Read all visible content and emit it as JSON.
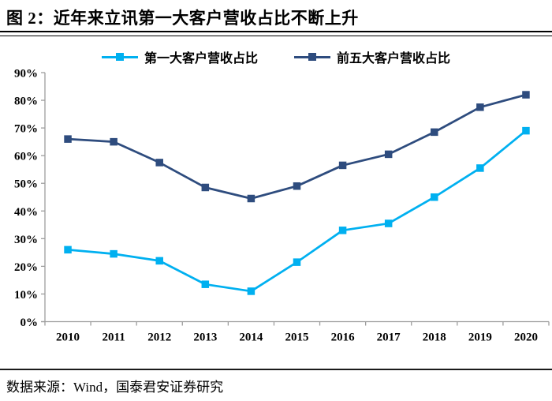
{
  "figure": {
    "title": "图 2：近年来立讯第一大客户营收占比不断上升",
    "source": "数据来源：Wind，国泰君安证券研究"
  },
  "colors": {
    "series_first_customer": "#00B0F0",
    "series_top5_customers": "#2E4C7E",
    "axis": "#9d9d9d",
    "text": "#000000",
    "rule": "#000000"
  },
  "chart_data": {
    "type": "line",
    "title": "图 2：近年来立讯第一大客户营收占比不断上升",
    "categories": [
      "2010",
      "2011",
      "2012",
      "2013",
      "2014",
      "2015",
      "2016",
      "2017",
      "2018",
      "2019",
      "2020"
    ],
    "series": [
      {
        "name": "第一大客户营收占比",
        "color": "#00B0F0",
        "marker": "square",
        "values": [
          26,
          24.5,
          22,
          13.5,
          11,
          21.5,
          33,
          35.5,
          45,
          55.5,
          69
        ]
      },
      {
        "name": "前五大客户营收占比",
        "color": "#2E4C7E",
        "marker": "square",
        "values": [
          66,
          65,
          57.5,
          48.5,
          44.5,
          49,
          56.5,
          60.5,
          68.5,
          77.5,
          82
        ]
      }
    ],
    "xlabel": "",
    "ylabel": "",
    "ylim": [
      0,
      90
    ],
    "ytick_step": 10,
    "ytick_format": "percent",
    "grid": false,
    "legend_position": "top"
  }
}
